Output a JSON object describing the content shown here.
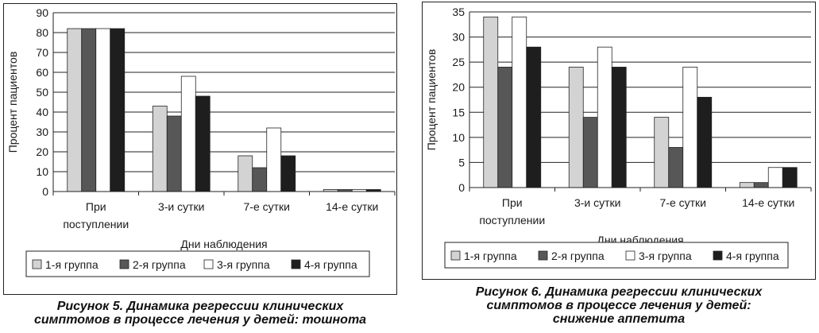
{
  "figures": [
    {
      "caption_line1": "Рисунок 5. Динамика регрессии клинических",
      "caption_line2": "симптомов в процессе лечения у детей: тошнота"
    },
    {
      "caption_line1": "Рисунок 6. Динамика регрессии клинических",
      "caption_line2": "симптомов в процессе лечения у детей:",
      "caption_line3": "снижение аппетита"
    }
  ],
  "chart_data": [
    {
      "type": "bar",
      "title": "",
      "xlabel": "Дни наблюдения",
      "ylabel": "Процент пациентов",
      "ylim": [
        0,
        90
      ],
      "yticks": [
        0,
        10,
        20,
        30,
        40,
        50,
        60,
        70,
        80,
        90
      ],
      "grid": true,
      "legend_position": "bottom",
      "categories": [
        [
          "При",
          "поступлении"
        ],
        [
          "3-и сутки"
        ],
        [
          "7-е сутки"
        ],
        [
          "14-е сутки"
        ]
      ],
      "series": [
        {
          "name": "1-я группа",
          "color": "#d3d3d3",
          "values": [
            82,
            43,
            18,
            1
          ]
        },
        {
          "name": "2-я группа",
          "color": "#575757",
          "values": [
            82,
            38,
            12,
            1
          ]
        },
        {
          "name": "3-я группа",
          "color": "#ffffff",
          "values": [
            82,
            58,
            32,
            1
          ]
        },
        {
          "name": "4-я группа",
          "color": "#1e1e1e",
          "values": [
            82,
            48,
            18,
            1
          ]
        }
      ]
    },
    {
      "type": "bar",
      "title": "",
      "xlabel": "Дни наблюдения",
      "ylabel": "Процент пациентов",
      "ylim": [
        0,
        35
      ],
      "yticks": [
        0,
        5,
        10,
        15,
        20,
        25,
        30,
        35
      ],
      "grid": true,
      "legend_position": "bottom",
      "categories": [
        [
          "При",
          "поступлении"
        ],
        [
          "3-и сутки"
        ],
        [
          "7-е сутки"
        ],
        [
          "14-е сутки"
        ]
      ],
      "series": [
        {
          "name": "1-я группа",
          "color": "#d3d3d3",
          "values": [
            34,
            24,
            14,
            1
          ]
        },
        {
          "name": "2-я группа",
          "color": "#575757",
          "values": [
            24,
            14,
            8,
            1
          ]
        },
        {
          "name": "3-я группа",
          "color": "#ffffff",
          "values": [
            34,
            28,
            24,
            4
          ]
        },
        {
          "name": "4-я группа",
          "color": "#1e1e1e",
          "values": [
            28,
            24,
            18,
            4
          ]
        }
      ]
    }
  ]
}
